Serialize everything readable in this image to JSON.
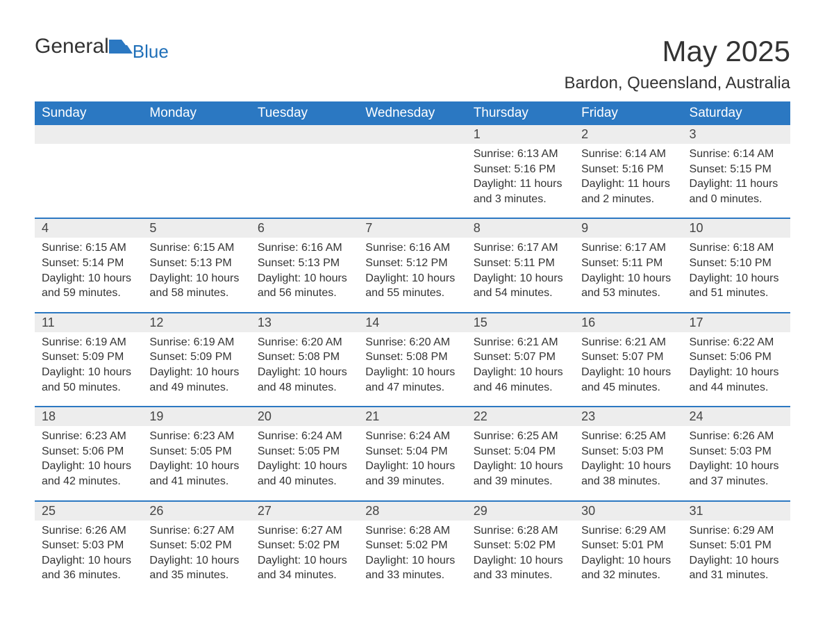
{
  "brand": {
    "text_main": "General",
    "text_sub": "Blue",
    "icon_color": "#2b78c2"
  },
  "title": {
    "month_year": "May 2025",
    "location": "Bardon, Queensland, Australia"
  },
  "style": {
    "header_bg": "#2b78c2",
    "header_text_color": "#ffffff",
    "day_number_bg": "#ededed",
    "day_number_color": "#444444",
    "body_text_color": "#333333",
    "week_divider_color": "#2b78c2",
    "page_bg": "#ffffff",
    "header_fontsize": 19,
    "daynum_fontsize": 18,
    "body_fontsize": 16,
    "title_fontsize": 42,
    "location_fontsize": 24
  },
  "day_headers": [
    "Sunday",
    "Monday",
    "Tuesday",
    "Wednesday",
    "Thursday",
    "Friday",
    "Saturday"
  ],
  "weeks": [
    [
      null,
      null,
      null,
      null,
      {
        "num": "1",
        "sunrise": "6:13 AM",
        "sunset": "5:16 PM",
        "daylight": "11 hours and 3 minutes."
      },
      {
        "num": "2",
        "sunrise": "6:14 AM",
        "sunset": "5:16 PM",
        "daylight": "11 hours and 2 minutes."
      },
      {
        "num": "3",
        "sunrise": "6:14 AM",
        "sunset": "5:15 PM",
        "daylight": "11 hours and 0 minutes."
      }
    ],
    [
      {
        "num": "4",
        "sunrise": "6:15 AM",
        "sunset": "5:14 PM",
        "daylight": "10 hours and 59 minutes."
      },
      {
        "num": "5",
        "sunrise": "6:15 AM",
        "sunset": "5:13 PM",
        "daylight": "10 hours and 58 minutes."
      },
      {
        "num": "6",
        "sunrise": "6:16 AM",
        "sunset": "5:13 PM",
        "daylight": "10 hours and 56 minutes."
      },
      {
        "num": "7",
        "sunrise": "6:16 AM",
        "sunset": "5:12 PM",
        "daylight": "10 hours and 55 minutes."
      },
      {
        "num": "8",
        "sunrise": "6:17 AM",
        "sunset": "5:11 PM",
        "daylight": "10 hours and 54 minutes."
      },
      {
        "num": "9",
        "sunrise": "6:17 AM",
        "sunset": "5:11 PM",
        "daylight": "10 hours and 53 minutes."
      },
      {
        "num": "10",
        "sunrise": "6:18 AM",
        "sunset": "5:10 PM",
        "daylight": "10 hours and 51 minutes."
      }
    ],
    [
      {
        "num": "11",
        "sunrise": "6:19 AM",
        "sunset": "5:09 PM",
        "daylight": "10 hours and 50 minutes."
      },
      {
        "num": "12",
        "sunrise": "6:19 AM",
        "sunset": "5:09 PM",
        "daylight": "10 hours and 49 minutes."
      },
      {
        "num": "13",
        "sunrise": "6:20 AM",
        "sunset": "5:08 PM",
        "daylight": "10 hours and 48 minutes."
      },
      {
        "num": "14",
        "sunrise": "6:20 AM",
        "sunset": "5:08 PM",
        "daylight": "10 hours and 47 minutes."
      },
      {
        "num": "15",
        "sunrise": "6:21 AM",
        "sunset": "5:07 PM",
        "daylight": "10 hours and 46 minutes."
      },
      {
        "num": "16",
        "sunrise": "6:21 AM",
        "sunset": "5:07 PM",
        "daylight": "10 hours and 45 minutes."
      },
      {
        "num": "17",
        "sunrise": "6:22 AM",
        "sunset": "5:06 PM",
        "daylight": "10 hours and 44 minutes."
      }
    ],
    [
      {
        "num": "18",
        "sunrise": "6:23 AM",
        "sunset": "5:06 PM",
        "daylight": "10 hours and 42 minutes."
      },
      {
        "num": "19",
        "sunrise": "6:23 AM",
        "sunset": "5:05 PM",
        "daylight": "10 hours and 41 minutes."
      },
      {
        "num": "20",
        "sunrise": "6:24 AM",
        "sunset": "5:05 PM",
        "daylight": "10 hours and 40 minutes."
      },
      {
        "num": "21",
        "sunrise": "6:24 AM",
        "sunset": "5:04 PM",
        "daylight": "10 hours and 39 minutes."
      },
      {
        "num": "22",
        "sunrise": "6:25 AM",
        "sunset": "5:04 PM",
        "daylight": "10 hours and 39 minutes."
      },
      {
        "num": "23",
        "sunrise": "6:25 AM",
        "sunset": "5:03 PM",
        "daylight": "10 hours and 38 minutes."
      },
      {
        "num": "24",
        "sunrise": "6:26 AM",
        "sunset": "5:03 PM",
        "daylight": "10 hours and 37 minutes."
      }
    ],
    [
      {
        "num": "25",
        "sunrise": "6:26 AM",
        "sunset": "5:03 PM",
        "daylight": "10 hours and 36 minutes."
      },
      {
        "num": "26",
        "sunrise": "6:27 AM",
        "sunset": "5:02 PM",
        "daylight": "10 hours and 35 minutes."
      },
      {
        "num": "27",
        "sunrise": "6:27 AM",
        "sunset": "5:02 PM",
        "daylight": "10 hours and 34 minutes."
      },
      {
        "num": "28",
        "sunrise": "6:28 AM",
        "sunset": "5:02 PM",
        "daylight": "10 hours and 33 minutes."
      },
      {
        "num": "29",
        "sunrise": "6:28 AM",
        "sunset": "5:02 PM",
        "daylight": "10 hours and 33 minutes."
      },
      {
        "num": "30",
        "sunrise": "6:29 AM",
        "sunset": "5:01 PM",
        "daylight": "10 hours and 32 minutes."
      },
      {
        "num": "31",
        "sunrise": "6:29 AM",
        "sunset": "5:01 PM",
        "daylight": "10 hours and 31 minutes."
      }
    ]
  ],
  "labels": {
    "sunrise_prefix": "Sunrise: ",
    "sunset_prefix": "Sunset: ",
    "daylight_prefix": "Daylight: "
  }
}
